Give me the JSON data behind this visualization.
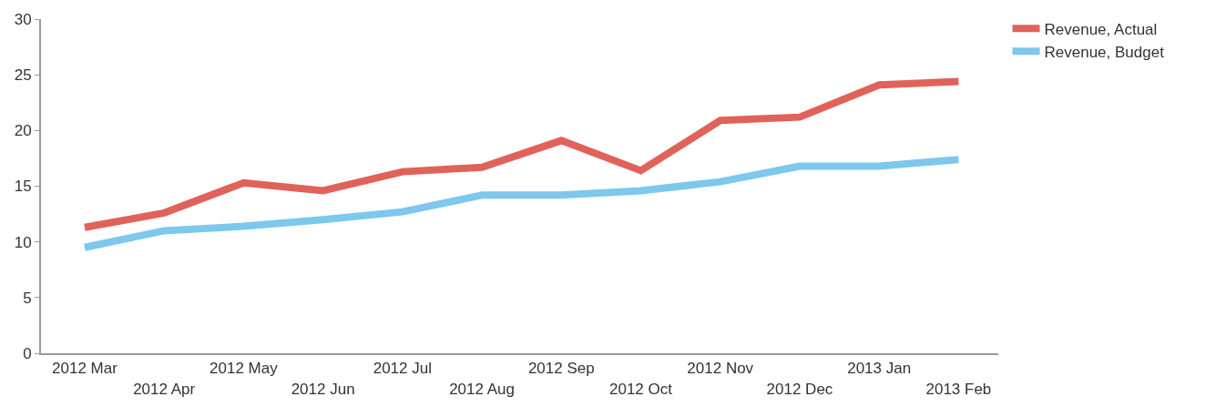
{
  "chart_data": {
    "type": "line",
    "categories": [
      "2012 Mar",
      "2012 Apr",
      "2012 May",
      "2012 Jun",
      "2012 Jul",
      "2012 Aug",
      "2012 Sep",
      "2012 Oct",
      "2012 Nov",
      "2012 Dec",
      "2013 Jan",
      "2013 Feb"
    ],
    "series": [
      {
        "name": "Revenue, Actual",
        "color": "#e0625a",
        "values": [
          11.3,
          12.6,
          15.3,
          14.6,
          16.3,
          16.7,
          19.1,
          16.4,
          20.9,
          21.2,
          24.1,
          24.4
        ]
      },
      {
        "name": "Revenue, Budget",
        "color": "#7dc8ec",
        "values": [
          9.5,
          11.0,
          11.4,
          12.0,
          12.7,
          14.2,
          14.2,
          14.6,
          15.4,
          16.8,
          16.8,
          17.4
        ]
      }
    ],
    "ylim": [
      0,
      30
    ],
    "yticks": [
      0,
      5,
      10,
      15,
      20,
      25,
      30
    ],
    "legend": "top right",
    "marker": "none",
    "line_style": "solid"
  }
}
